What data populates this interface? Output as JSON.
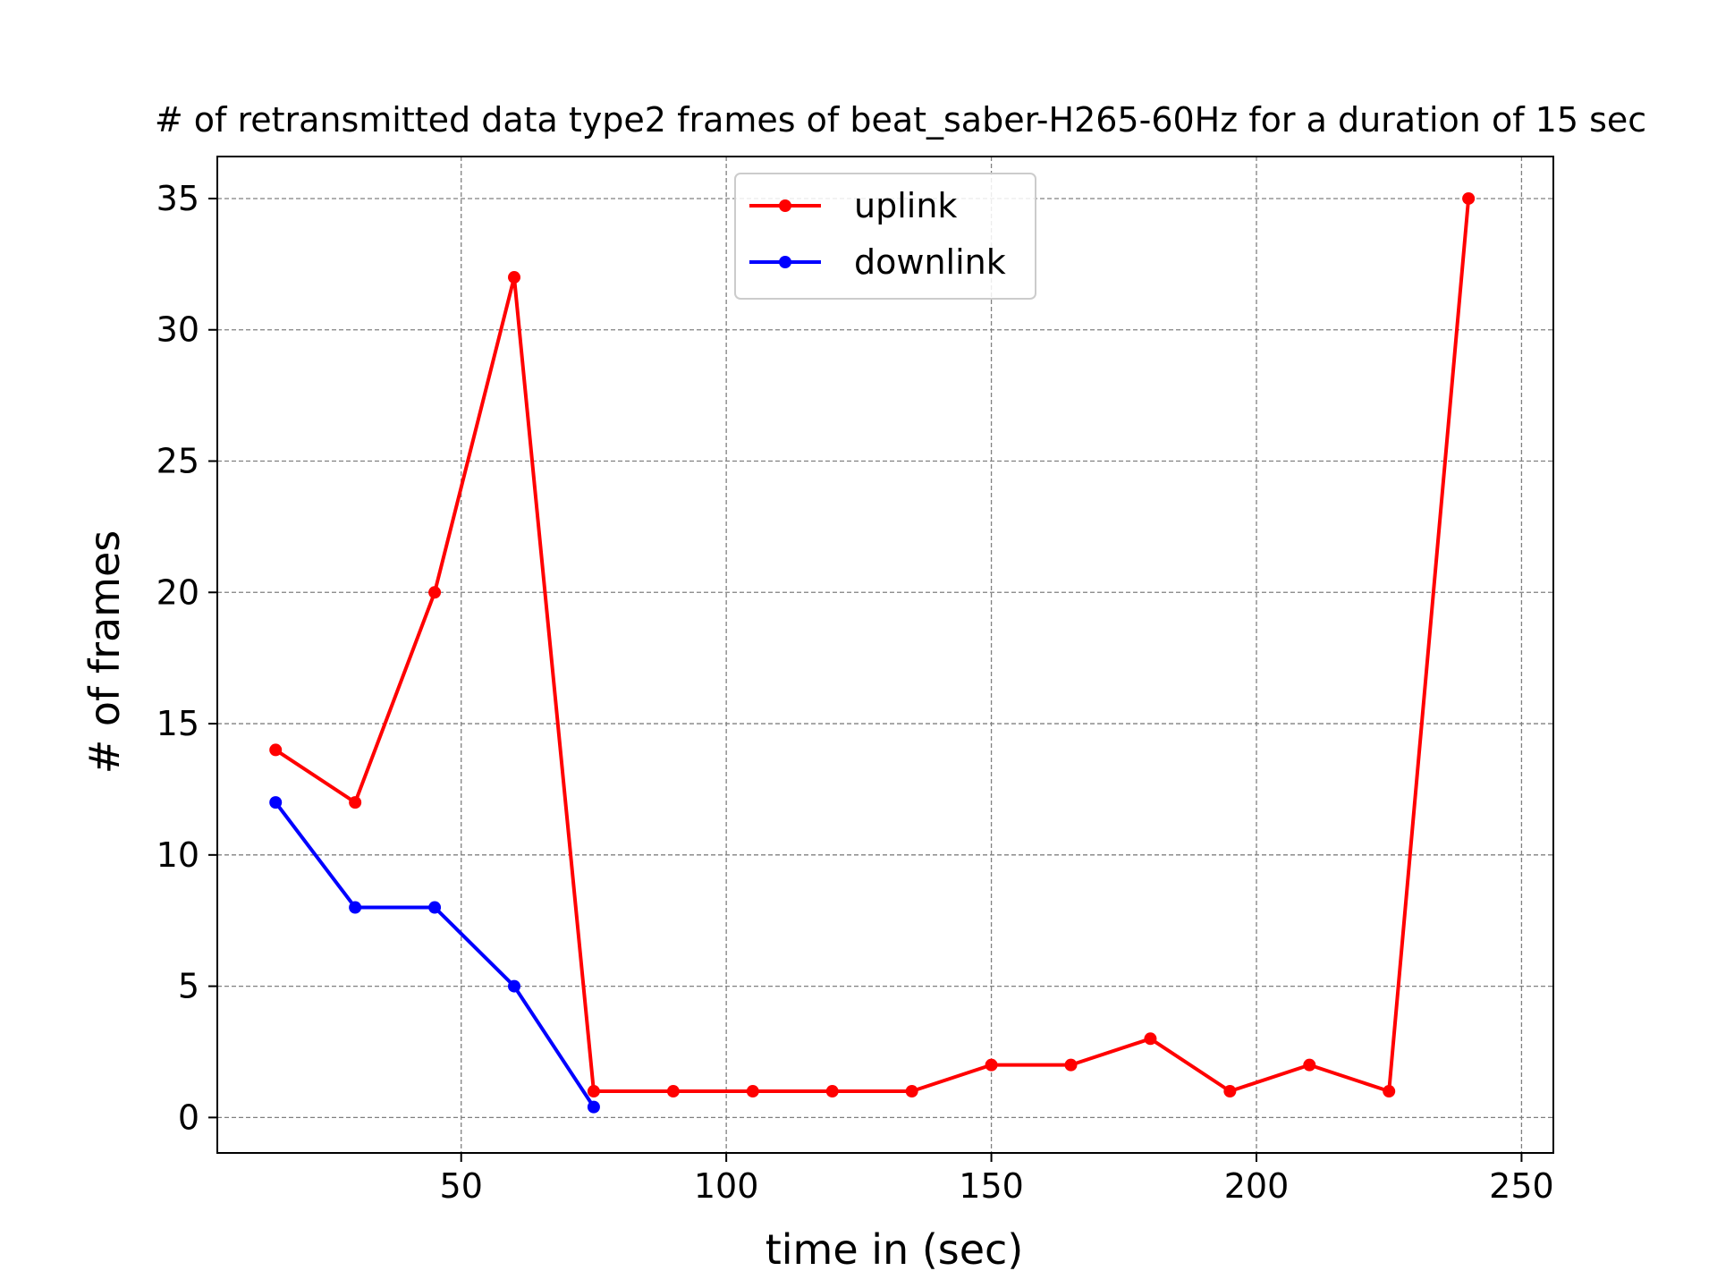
{
  "chart_data": {
    "type": "line",
    "title": "# of retransmitted data type2 frames of beat_saber-H265-60Hz for a duration of 15 sec",
    "xlabel": "time in (sec)",
    "ylabel": "# of frames",
    "xlim": [
      4,
      256
    ],
    "ylim": [
      -1.35,
      36.6
    ],
    "xticks": [
      50,
      100,
      150,
      200,
      250
    ],
    "yticks": [
      0,
      5,
      10,
      15,
      20,
      25,
      30,
      35
    ],
    "grid": true,
    "legend_position": "top-center",
    "series": [
      {
        "name": "uplink",
        "color": "#ff0000",
        "x": [
          15,
          30,
          45,
          60,
          75,
          90,
          105,
          120,
          135,
          150,
          165,
          180,
          195,
          210,
          225,
          240
        ],
        "y": [
          14,
          12,
          20,
          32,
          1,
          1,
          1,
          1,
          1,
          2,
          2,
          3,
          1,
          2,
          1,
          35
        ]
      },
      {
        "name": "downlink",
        "color": "#0000ff",
        "x": [
          15,
          30,
          45,
          60,
          75
        ],
        "y": [
          12,
          8,
          8,
          5,
          0.4
        ]
      }
    ]
  }
}
